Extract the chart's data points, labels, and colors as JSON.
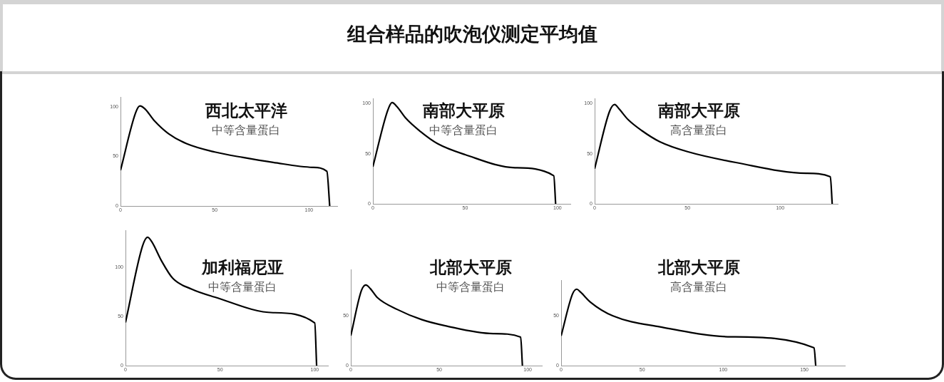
{
  "chart_data": [
    {
      "type": "other",
      "title": "组合样品的吹泡仪测定平均值"
    },
    {
      "type": "line",
      "title": "西北太平洋",
      "subtitle": "中等含量蛋白",
      "xlim": [
        0,
        115
      ],
      "xticks": [
        0,
        50,
        100
      ],
      "ylim": [
        0,
        110
      ],
      "yticks": [
        0,
        50,
        100
      ],
      "series": [
        {
          "color": "#000000",
          "x": [
            0,
            8,
            10.3,
            13,
            18,
            25.5,
            35,
            50,
            65,
            81,
            102,
            109.5,
            111
          ],
          "values": [
            36,
            94,
            101,
            98,
            86,
            73,
            63,
            54.5,
            49,
            44,
            39,
            35,
            0
          ]
        }
      ]
    },
    {
      "type": "line",
      "title": "南部大平原",
      "subtitle": "中等含量蛋白",
      "xlim": [
        0,
        107
      ],
      "xticks": [
        0,
        50,
        100
      ],
      "ylim": [
        0,
        105
      ],
      "yticks": [
        0,
        50,
        100
      ],
      "series": [
        {
          "color": "#000000",
          "x": [
            0,
            8,
            10.4,
            13,
            18,
            25.8,
            35,
            50,
            77,
            98,
            99
          ],
          "values": [
            37,
            93,
            101,
            97,
            85,
            72,
            60,
            49,
            36,
            28,
            0
          ]
        }
      ]
    },
    {
      "type": "line",
      "title": "南部大平原",
      "subtitle": "高含量蛋白",
      "xlim": [
        0,
        131
      ],
      "xticks": [
        0,
        50,
        100
      ],
      "ylim": [
        0,
        105
      ],
      "yticks": [
        0,
        50,
        100
      ],
      "series": [
        {
          "color": "#000000",
          "x": [
            0,
            8,
            10.8,
            13,
            18,
            25.4,
            35,
            50,
            76.6,
            114,
            127,
            128
          ],
          "values": [
            35,
            92,
            99,
            95,
            84,
            73,
            62,
            52,
            41,
            30.5,
            27,
            0
          ]
        }
      ]
    },
    {
      "type": "line",
      "title": "加利福尼亚",
      "subtitle": "中等含量蛋白",
      "xlim": [
        0,
        107
      ],
      "xticks": [
        0,
        50,
        100
      ],
      "ylim": [
        0,
        138
      ],
      "yticks": [
        0,
        50,
        100
      ],
      "series": [
        {
          "color": "#000000",
          "x": [
            0,
            9,
            11.7,
            14,
            19,
            25,
            35,
            47,
            78,
            100,
            101
          ],
          "values": [
            44,
            122,
            131,
            126,
            107,
            89,
            78,
            70,
            54,
            43.5,
            0
          ]
        }
      ]
    },
    {
      "type": "line",
      "title": "北部大平原",
      "subtitle": "中等含量蛋白",
      "xlim": [
        0,
        108
      ],
      "xticks": [
        0,
        50,
        100
      ],
      "ylim": [
        0,
        96
      ],
      "yticks": [
        0,
        50
      ],
      "series": [
        {
          "color": "#000000",
          "x": [
            0,
            6,
            8.5,
            11,
            15,
            26.4,
            40,
            53,
            80.5,
            96,
            97
          ],
          "values": [
            30,
            75,
            80.5,
            77,
            68,
            56,
            46,
            40,
            32,
            28.5,
            0
          ]
        }
      ]
    },
    {
      "type": "line",
      "title": "北部大平原",
      "subtitle": "高含量蛋白",
      "xlim": [
        0,
        175
      ],
      "xticks": [
        0,
        50,
        100,
        150
      ],
      "ylim": [
        0,
        86
      ],
      "yticks": [
        0,
        50
      ],
      "series": [
        {
          "color": "#000000",
          "x": [
            0,
            7,
            9.6,
            12,
            18,
            32,
            61,
            105,
            156,
            157
          ],
          "values": [
            30,
            72,
            77,
            74,
            64,
            50,
            39,
            29,
            18,
            0
          ]
        }
      ]
    }
  ]
}
